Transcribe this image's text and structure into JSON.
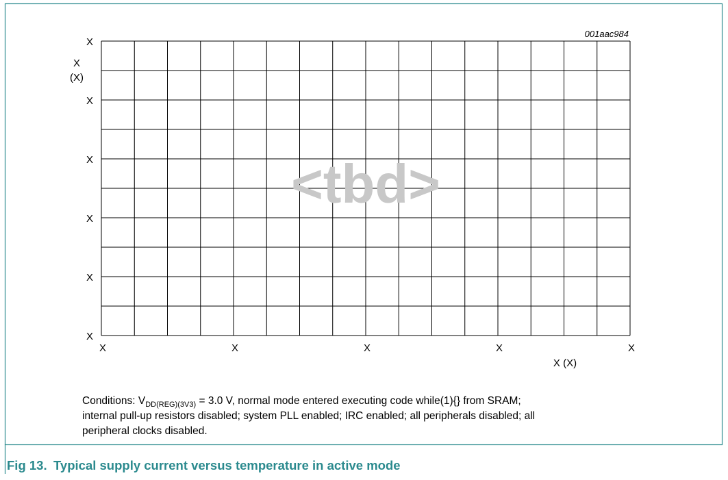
{
  "figure": {
    "id": "001aac984",
    "y_axis_label": [
      "X",
      "(X)"
    ],
    "x_axis_label": "X (X)",
    "y_tick_labels": [
      "X",
      "X",
      "X",
      "X",
      "X",
      "X"
    ],
    "x_tick_labels": [
      "X",
      "X",
      "X",
      "X",
      "X"
    ],
    "watermark": "<tbd>",
    "conditions": {
      "prefix": "Conditions: V",
      "subscript": "DD(REG)(3V3)",
      "rest": " = 3.0 V, normal mode entered executing code while(1){} from SRAM;",
      "lines": [
        "internal pull-up resistors disabled; system PLL enabled; IRC enabled; all peripherals disabled; all",
        "peripheral clocks disabled."
      ]
    },
    "caption": {
      "number": "Fig 13.",
      "text": "Typical supply current versus temperature in active mode"
    }
  }
}
